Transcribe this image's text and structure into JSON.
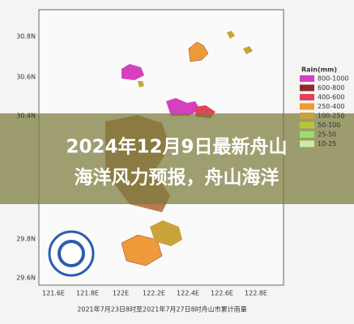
{
  "map": {
    "y_labels": [
      "30.8N",
      "30.6N",
      "30.4N",
      "29.8N",
      "29.6N"
    ],
    "x_labels": [
      "121.6E",
      "121.8E",
      "122E",
      "122.2E",
      "122.4E",
      "122.6E",
      "122.8E"
    ],
    "legend": {
      "title": "Rain(mm)",
      "entries": [
        {
          "label": "800-1000",
          "color": "#d63fc0"
        },
        {
          "label": "600-800",
          "color": "#8e2a2a"
        },
        {
          "label": "400-600",
          "color": "#e0445c"
        },
        {
          "label": "250-400",
          "color": "#ee9a3a"
        },
        {
          "label": "100-250",
          "color": "#c9a23a"
        },
        {
          "label": "50-100",
          "color": "#b4c83a"
        },
        {
          "label": "25-50",
          "color": "#9edc6a"
        },
        {
          "label": "10-25",
          "color": "#c8eea0"
        }
      ]
    },
    "caption": "2021年7月23日8时至2021年7月27日8时舟山市累计雨量"
  },
  "banner": {
    "lines": [
      "2024年12月9日最新舟山",
      "海洋风力预报，舟山海洋"
    ]
  }
}
